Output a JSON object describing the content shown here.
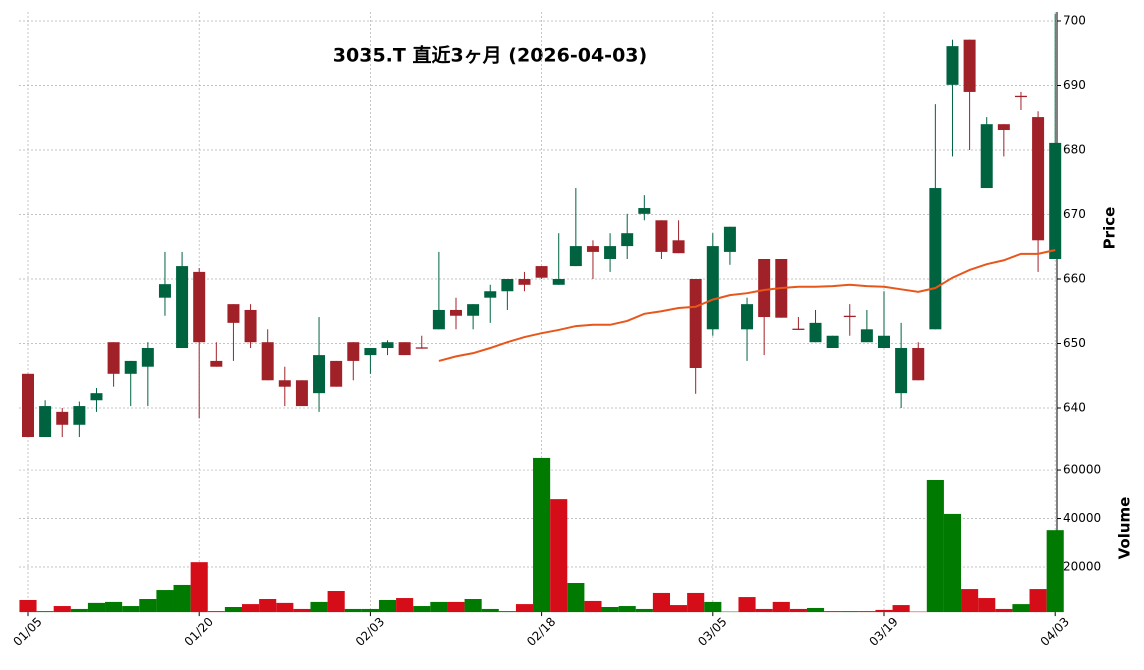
{
  "chart_data": {
    "type": "candlestick",
    "title": "3035.T  直近3ヶ月  (2026-04-03)",
    "categories": [
      "01/05",
      null,
      null,
      null,
      null,
      null,
      null,
      null,
      null,
      null,
      "01/20",
      null,
      null,
      null,
      null,
      null,
      null,
      null,
      null,
      null,
      "02/03",
      null,
      null,
      null,
      null,
      null,
      null,
      null,
      null,
      null,
      "02/18",
      null,
      null,
      null,
      null,
      null,
      null,
      null,
      null,
      null,
      "03/05",
      null,
      null,
      null,
      null,
      null,
      null,
      null,
      null,
      null,
      "03/19",
      null,
      null,
      null,
      null,
      null,
      null,
      null,
      null,
      null,
      "04/03"
    ],
    "open": [
      645.3,
      635.5,
      639.4,
      637.4,
      641.2,
      650.2,
      645.3,
      646.4,
      657.1,
      649.3,
      661.1,
      647.3,
      656.1,
      655.2,
      650.2,
      644.3,
      644.3,
      642.3,
      647.3,
      650.2,
      648.2,
      649.3,
      650.2,
      649.4,
      652.2,
      655.2,
      654.3,
      657.1,
      658.1,
      660.0,
      662.0,
      659.1,
      662.0,
      665.1,
      663.1,
      665.1,
      670.1,
      669.1,
      666.0,
      660.0,
      652.2,
      664.2,
      652.2,
      663.1,
      663.1,
      652.3,
      650.2,
      649.3,
      654.3,
      650.2,
      649.3,
      642.3,
      649.3,
      652.2,
      690.1,
      697.1,
      674.1,
      684.0,
      688.4,
      685.1,
      663.1
    ],
    "high": [
      645.3,
      641.2,
      640.0,
      641.0,
      643.1,
      650.2,
      647.3,
      650.2,
      664.2,
      664.2,
      661.7,
      650.2,
      656.1,
      656.1,
      652.2,
      646.4,
      644.3,
      654.1,
      647.3,
      650.2,
      649.3,
      650.5,
      650.2,
      651.2,
      664.2,
      657.1,
      656.1,
      659.1,
      660.0,
      661.1,
      662.0,
      667.1,
      674.1,
      666.0,
      667.1,
      670.1,
      673.0,
      669.1,
      669.1,
      660.0,
      667.1,
      668.1,
      657.1,
      663.1,
      663.1,
      654.1,
      655.2,
      651.2,
      656.1,
      655.2,
      658.1,
      653.2,
      650.2,
      687.1,
      697.1,
      697.1,
      685.1,
      684.0,
      689.0,
      686.0,
      701.1
    ],
    "low": [
      635.5,
      635.5,
      635.5,
      635.5,
      639.4,
      643.3,
      640.3,
      640.3,
      654.3,
      649.3,
      638.4,
      646.4,
      647.3,
      649.3,
      644.3,
      640.3,
      640.3,
      639.4,
      643.3,
      644.3,
      645.3,
      648.2,
      648.2,
      649.2,
      652.2,
      652.2,
      652.2,
      653.2,
      655.2,
      658.1,
      660.0,
      659.1,
      662.0,
      660.0,
      661.1,
      663.1,
      669.1,
      663.1,
      664.0,
      642.2,
      651.2,
      662.2,
      647.3,
      648.2,
      654.0,
      652.1,
      650.2,
      649.3,
      651.2,
      650.2,
      649.3,
      640.0,
      644.3,
      652.2,
      679.0,
      680.0,
      674.1,
      679.0,
      686.2,
      661.1,
      663.1
    ],
    "close": [
      635.5,
      640.3,
      637.4,
      640.3,
      642.3,
      645.3,
      647.3,
      649.3,
      659.2,
      662.0,
      650.2,
      646.4,
      653.2,
      650.2,
      644.3,
      643.3,
      640.3,
      648.2,
      643.3,
      647.3,
      649.3,
      650.2,
      648.2,
      649.2,
      655.2,
      654.3,
      656.1,
      658.1,
      660.0,
      659.1,
      660.2,
      660.0,
      665.1,
      664.2,
      665.1,
      667.1,
      671.0,
      664.2,
      664.0,
      646.2,
      665.1,
      668.1,
      656.1,
      654.1,
      654.0,
      652.1,
      653.2,
      651.2,
      654.1,
      652.2,
      651.2,
      649.3,
      644.3,
      674.1,
      696.1,
      689.0,
      684.0,
      683.1,
      688.2,
      666.0,
      681.1
    ],
    "volume": [
      6400,
      1800,
      3900,
      2700,
      5200,
      5600,
      3900,
      6800,
      10500,
      12600,
      22000,
      1800,
      3500,
      4700,
      6800,
      5200,
      2700,
      5600,
      10100,
      2700,
      2700,
      6400,
      7200,
      3900,
      5600,
      5600,
      6800,
      2700,
      1800,
      4700,
      65000,
      48000,
      13400,
      6000,
      3500,
      3900,
      2700,
      9300,
      4300,
      9300,
      5600,
      1600,
      7600,
      2700,
      5600,
      2700,
      3100,
      1800,
      1800,
      1800,
      2300,
      4300,
      1600,
      55900,
      41900,
      10900,
      7200,
      2700,
      4700,
      10900,
      35200
    ],
    "ma": {
      "color": "#e8561a",
      "values": [
        null,
        null,
        null,
        null,
        null,
        null,
        null,
        null,
        null,
        null,
        null,
        null,
        null,
        null,
        null,
        null,
        null,
        null,
        null,
        null,
        null,
        null,
        null,
        null,
        647.3,
        648,
        648.5,
        649.3,
        650.2,
        651,
        651.6,
        652.1,
        652.7,
        652.9,
        652.9,
        653.5,
        654.6,
        655,
        655.5,
        655.7,
        656.8,
        657.5,
        657.8,
        658.3,
        658.6,
        658.8,
        658.8,
        658.9,
        659.1,
        658.9,
        658.8,
        658.4,
        658,
        658.6,
        660.2,
        661.4,
        662.3,
        662.9,
        663.9,
        663.9,
        664.5
      ]
    },
    "up_color": "#006340",
    "down_color": "#a02128",
    "volume_up_color": "#007a00",
    "volume_down_color": "#d50d18",
    "ylabel": "Price",
    "ylim": [
      635,
      701.5
    ],
    "yticks": [
      640,
      650,
      660,
      670,
      680,
      690,
      700
    ],
    "y2label": "Volume",
    "y2lim": [
      1400,
      66000
    ],
    "y2ticks": [
      20000,
      40000,
      60000
    ],
    "grid": true
  }
}
